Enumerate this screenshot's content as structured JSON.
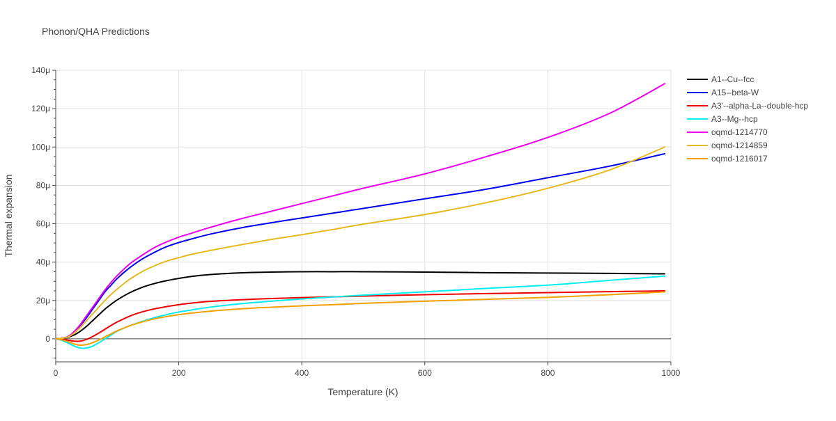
{
  "chart_data": {
    "type": "line",
    "title": "Phonon/QHA Predictions",
    "xlabel": "Temperature (K)",
    "ylabel": "Thermal expansion",
    "xlim": [
      0,
      1000
    ],
    "ylim": [
      -12,
      140
    ],
    "y_unit_suffix": "μ",
    "x_ticks": [
      0,
      200,
      400,
      600,
      800,
      1000
    ],
    "x_tick_labels": [
      "0",
      "200",
      "400",
      "600",
      "800",
      "1000"
    ],
    "y_ticks": [
      0,
      20,
      40,
      60,
      80,
      100,
      120,
      140
    ],
    "y_tick_labels": [
      "0",
      "20μ",
      "40μ",
      "60μ",
      "80μ",
      "100μ",
      "120μ",
      "140μ"
    ],
    "grid": true,
    "legend_position": "top-right",
    "series": [
      {
        "name": "A1--Cu--fcc",
        "color": "#000000",
        "x": [
          0,
          10,
          20,
          30,
          40,
          50,
          60,
          70,
          80,
          90,
          100,
          120,
          140,
          160,
          180,
          200,
          220,
          250,
          300,
          350,
          400,
          450,
          500,
          600,
          700,
          800,
          900,
          990
        ],
        "y": [
          0,
          0.2,
          0.8,
          2.0,
          4.0,
          6.5,
          9.5,
          12.5,
          15.5,
          18.0,
          20.3,
          24.0,
          26.8,
          28.8,
          30.3,
          31.5,
          32.5,
          33.5,
          34.4,
          34.8,
          35.0,
          35.0,
          35.0,
          34.8,
          34.5,
          34.3,
          34.1,
          33.9
        ]
      },
      {
        "name": "A15--beta-W",
        "color": "#0000ee",
        "x": [
          0,
          10,
          20,
          30,
          40,
          50,
          60,
          70,
          80,
          90,
          100,
          120,
          140,
          160,
          180,
          200,
          220,
          250,
          300,
          350,
          400,
          450,
          500,
          600,
          700,
          800,
          900,
          990
        ],
        "y": [
          0,
          0.3,
          1.2,
          3.5,
          7.0,
          11.0,
          15.5,
          20.0,
          24.5,
          28.0,
          31.5,
          37.0,
          41.5,
          45.0,
          48.0,
          50.2,
          52.0,
          54.5,
          57.8,
          60.5,
          63.0,
          65.5,
          68.0,
          73.0,
          78.0,
          84.0,
          90.0,
          96.5
        ]
      },
      {
        "name": "A3'--alpha-La--double-hcp",
        "color": "#ee0000",
        "x": [
          0,
          10,
          20,
          30,
          40,
          50,
          60,
          70,
          80,
          90,
          100,
          120,
          140,
          160,
          180,
          200,
          220,
          250,
          300,
          350,
          400,
          450,
          500,
          600,
          700,
          800,
          900,
          990
        ],
        "y": [
          0,
          -0.2,
          -0.7,
          -1.2,
          -1.2,
          -0.3,
          1.2,
          3.0,
          5.0,
          7.0,
          8.8,
          11.8,
          14.0,
          15.6,
          16.8,
          17.8,
          18.6,
          19.5,
          20.4,
          21.0,
          21.5,
          21.9,
          22.3,
          23.0,
          23.6,
          24.1,
          24.6,
          25.0
        ]
      },
      {
        "name": "A3--Mg--hcp",
        "color": "#00eeee",
        "x": [
          0,
          10,
          20,
          30,
          40,
          50,
          60,
          70,
          80,
          90,
          100,
          120,
          140,
          160,
          180,
          200,
          220,
          250,
          300,
          350,
          400,
          450,
          500,
          600,
          700,
          800,
          900,
          990
        ],
        "y": [
          0,
          -0.8,
          -2.2,
          -3.8,
          -4.8,
          -4.8,
          -3.8,
          -2.0,
          0.0,
          2.0,
          4.0,
          6.8,
          9.0,
          11.0,
          12.6,
          14.0,
          15.0,
          16.5,
          18.3,
          19.6,
          20.8,
          21.8,
          22.8,
          24.5,
          26.3,
          28.0,
          30.5,
          32.7
        ]
      },
      {
        "name": "oqmd-1214770",
        "color": "#ee00ee",
        "x": [
          0,
          10,
          20,
          30,
          40,
          50,
          60,
          70,
          80,
          90,
          100,
          120,
          140,
          160,
          180,
          200,
          220,
          250,
          300,
          350,
          400,
          450,
          500,
          600,
          700,
          800,
          900,
          990
        ],
        "y": [
          0,
          0.3,
          1.2,
          3.8,
          7.5,
          12.0,
          16.5,
          21.0,
          25.5,
          29.5,
          33.0,
          39.0,
          43.5,
          47.5,
          50.5,
          53.0,
          55.0,
          58.0,
          62.5,
          66.5,
          70.5,
          74.5,
          78.5,
          86.0,
          95.0,
          105.0,
          117.5,
          133.0
        ]
      },
      {
        "name": "oqmd-1214859",
        "color": "#e6b820",
        "x": [
          0,
          10,
          20,
          30,
          40,
          50,
          60,
          70,
          80,
          90,
          100,
          120,
          140,
          160,
          180,
          200,
          220,
          250,
          300,
          350,
          400,
          450,
          500,
          600,
          700,
          800,
          900,
          990
        ],
        "y": [
          0,
          0.3,
          1.0,
          3.0,
          6.0,
          9.5,
          13.0,
          16.5,
          20.0,
          23.2,
          26.0,
          31.0,
          35.0,
          38.0,
          40.5,
          42.3,
          44.0,
          46.0,
          49.0,
          51.8,
          54.3,
          57.0,
          59.8,
          64.8,
          71.0,
          78.5,
          88.0,
          100.0
        ]
      },
      {
        "name": "oqmd-1216017",
        "color": "#f0a000",
        "x": [
          0,
          10,
          20,
          30,
          40,
          50,
          60,
          70,
          80,
          90,
          100,
          120,
          140,
          160,
          180,
          200,
          220,
          250,
          300,
          350,
          400,
          450,
          500,
          600,
          700,
          800,
          900,
          990
        ],
        "y": [
          0,
          -0.5,
          -1.5,
          -2.7,
          -3.3,
          -3.0,
          -2.0,
          -0.6,
          1.0,
          2.6,
          4.2,
          6.8,
          8.8,
          10.4,
          11.6,
          12.6,
          13.4,
          14.4,
          15.6,
          16.5,
          17.2,
          17.8,
          18.5,
          19.6,
          20.6,
          21.6,
          23.0,
          24.5
        ]
      }
    ]
  }
}
